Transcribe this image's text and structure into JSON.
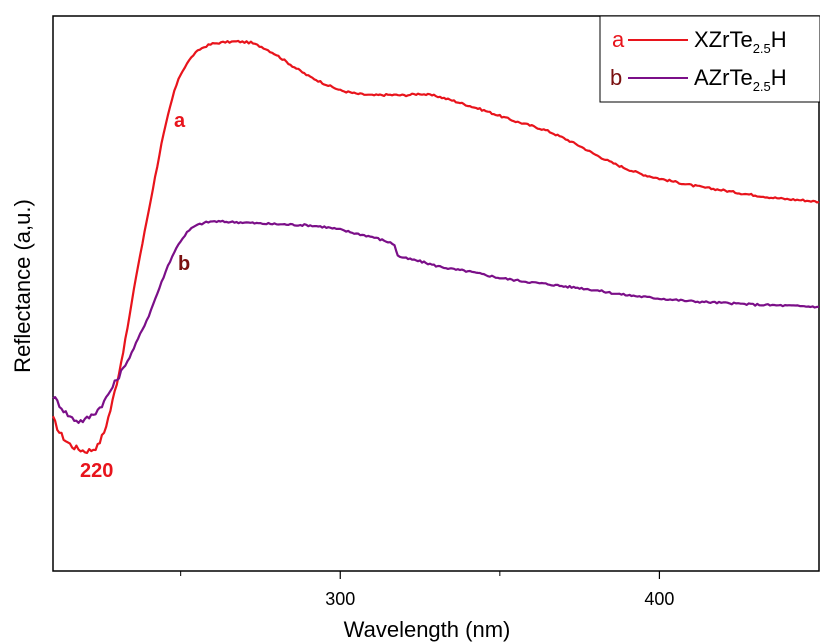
{
  "colors": {
    "series_a": "#e8141c",
    "series_b": "#7b0f88",
    "label_b": "#7a1010"
  },
  "chart_data": {
    "type": "line",
    "title": "",
    "xlabel": "Wavelength (nm)",
    "ylabel": "Reflectance (a,u.)",
    "xlim": [
      210,
      450
    ],
    "ylim": [
      0,
      100
    ],
    "x_major_ticks": [
      300,
      400
    ],
    "x_minor_ticks": [
      250,
      350
    ],
    "y_ticks_labeled": false,
    "grid": false,
    "legend": {
      "placement": "top-right",
      "entries": [
        {
          "letter": "a",
          "formula_main": "XZrTe",
          "formula_sub": "2.5",
          "formula_tail": "H"
        },
        {
          "letter": "b",
          "formula_main": "AZrTe",
          "formula_sub": "2.5",
          "formula_tail": "H"
        }
      ]
    },
    "annotations": [
      {
        "text": "a",
        "series": "a"
      },
      {
        "text": "b",
        "series": "b"
      },
      {
        "text": "220",
        "x": 220
      }
    ],
    "series": [
      {
        "name": "XZrTe2.5H",
        "label": "a",
        "x": [
          210,
          212,
          214,
          216,
          218,
          220,
          222,
          224,
          226,
          228,
          230,
          232,
          234,
          236,
          238,
          240,
          242,
          244,
          246,
          248,
          250,
          252,
          254,
          256,
          258,
          260,
          264,
          268,
          272,
          276,
          280,
          285,
          290,
          295,
          300,
          305,
          310,
          315,
          320,
          325,
          330,
          335,
          340,
          345,
          350,
          355,
          360,
          365,
          370,
          375,
          380,
          385,
          390,
          395,
          400,
          405,
          410,
          415,
          420,
          425,
          430,
          435,
          440,
          445,
          450
        ],
        "y": [
          27.5,
          25.0,
          23.5,
          22.5,
          22.0,
          21.6,
          21.8,
          22.5,
          25.0,
          29.0,
          34.0,
          39.5,
          46.0,
          53.0,
          59.0,
          65.0,
          71.0,
          77.0,
          82.0,
          86.5,
          89.5,
          91.5,
          93.0,
          94.0,
          94.6,
          95.0,
          95.3,
          95.4,
          95.2,
          94.3,
          93.0,
          91.0,
          89.2,
          87.8,
          86.6,
          86.0,
          85.7,
          85.8,
          85.7,
          86.0,
          85.6,
          84.8,
          83.9,
          83.0,
          82.0,
          81.0,
          80.2,
          79.3,
          78.0,
          76.6,
          75.0,
          73.6,
          72.4,
          71.4,
          70.7,
          70.1,
          69.5,
          69.0,
          68.6,
          68.1,
          67.7,
          67.3,
          67.0,
          66.8,
          66.5
        ]
      },
      {
        "name": "AZrTe2.5H",
        "label": "b",
        "x": [
          210,
          212,
          214,
          216,
          218,
          220,
          222,
          224,
          226,
          228,
          230,
          232,
          234,
          236,
          238,
          240,
          242,
          244,
          246,
          248,
          250,
          252,
          254,
          256,
          258,
          260,
          265,
          270,
          275,
          280,
          285,
          290,
          295,
          300,
          305,
          310,
          315,
          317,
          318,
          320,
          325,
          330,
          335,
          340,
          345,
          350,
          355,
          360,
          365,
          370,
          375,
          380,
          385,
          390,
          395,
          400,
          410,
          420,
          430,
          440,
          450
        ],
        "y": [
          31.5,
          30.0,
          28.5,
          27.5,
          27.0,
          27.2,
          28.0,
          29.0,
          30.5,
          32.5,
          34.5,
          36.5,
          38.5,
          41.0,
          43.5,
          46.0,
          49.0,
          52.0,
          55.0,
          57.5,
          59.5,
          61.0,
          62.0,
          62.5,
          62.8,
          63.0,
          62.9,
          62.8,
          62.6,
          62.5,
          62.4,
          62.3,
          62.0,
          61.5,
          60.8,
          60.2,
          59.3,
          58.8,
          56.8,
          56.4,
          55.8,
          55.0,
          54.4,
          54.0,
          53.4,
          52.8,
          52.4,
          52.0,
          51.7,
          51.3,
          51.0,
          50.6,
          50.1,
          49.7,
          49.4,
          49.1,
          48.6,
          48.3,
          48.0,
          47.8,
          47.6
        ]
      }
    ]
  }
}
